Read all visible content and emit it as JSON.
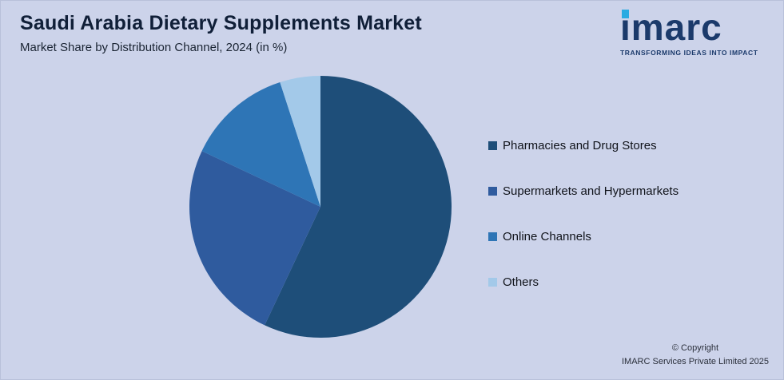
{
  "header": {
    "title": "Saudi Arabia Dietary Supplements Market",
    "subtitle": "Market Share by Distribution Channel, 2024 (in %)"
  },
  "logo": {
    "text": "imarc",
    "tagline": "TRANSFORMING IDEAS INTO IMPACT",
    "accent_color": "#29abe2",
    "text_color": "#1b3a6b"
  },
  "chart_data": {
    "type": "pie",
    "title": "Saudi Arabia Dietary Supplements Market",
    "subtitle": "Market Share by Distribution Channel, 2024 (in %)",
    "legend_position": "right",
    "start_angle_deg": 0,
    "direction": "clockwise",
    "slices": [
      {
        "label": "Pharmacies and Drug Stores",
        "value": 57,
        "color": "#1e4e79"
      },
      {
        "label": "Supermarkets and Hypermarkets",
        "value": 25,
        "color": "#2f5b9e"
      },
      {
        "label": "Online Channels",
        "value": 13,
        "color": "#2e75b6"
      },
      {
        "label": "Others",
        "value": 5,
        "color": "#a3c9e9"
      }
    ]
  },
  "footer": {
    "copyright_line1": "© Copyright",
    "copyright_line2": "IMARC Services Private Limited 2025"
  }
}
